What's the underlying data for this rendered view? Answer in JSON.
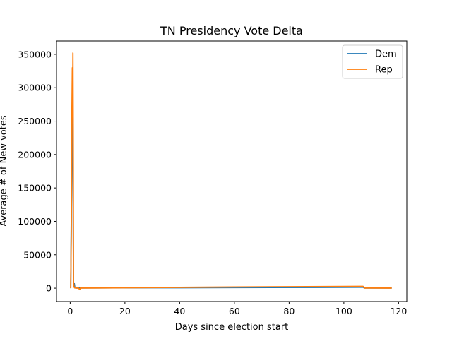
{
  "chart_data": {
    "type": "line",
    "title": "TN Presidency Vote Delta",
    "xlabel": "Days since election start",
    "ylabel": "Average # of New votes",
    "xlim": [
      -5,
      123
    ],
    "ylim": [
      -20000,
      370000
    ],
    "xticks": [
      0,
      20,
      40,
      60,
      80,
      100,
      120
    ],
    "yticks": [
      0,
      50000,
      100000,
      150000,
      200000,
      250000,
      300000,
      350000
    ],
    "legend_position": "top-right",
    "grid": false,
    "series": [
      {
        "name": "Dem",
        "color": "#1f77b4",
        "x": [
          0.2,
          0.5,
          0.8,
          1.0,
          1.1,
          1.2,
          1.3,
          1.5,
          1.7,
          2.0,
          3.0,
          10,
          30,
          60,
          90,
          107,
          107.5,
          110,
          117.5
        ],
        "y": [
          0,
          150000,
          275000,
          220000,
          100000,
          12000,
          3000,
          7000,
          1000,
          200,
          300,
          400,
          600,
          900,
          1200,
          1400,
          300,
          200,
          200
        ]
      },
      {
        "name": "Rep",
        "color": "#ff7f0e",
        "x": [
          0.2,
          0.4,
          0.6,
          0.8,
          0.9,
          1.0,
          1.1,
          1.2,
          1.4,
          1.6,
          2.0,
          3.0,
          3.5,
          3.7,
          5,
          20,
          40,
          60,
          80,
          100,
          107,
          107.5,
          110,
          117.5
        ],
        "y": [
          0,
          80000,
          250000,
          330000,
          270000,
          352000,
          240000,
          10000,
          2000,
          500,
          300,
          200,
          -2000,
          200,
          200,
          600,
          1200,
          1800,
          2200,
          2600,
          2700,
          300,
          200,
          150
        ]
      }
    ]
  }
}
